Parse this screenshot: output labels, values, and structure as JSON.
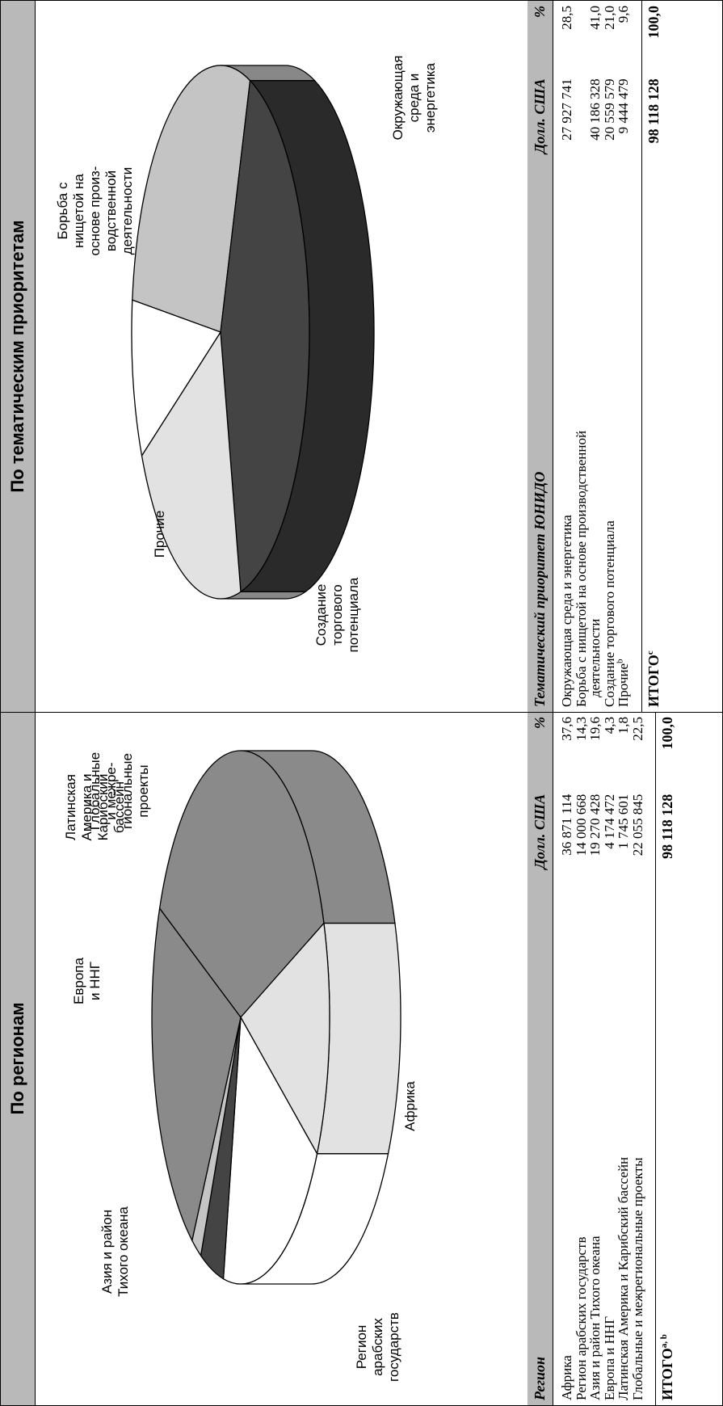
{
  "regions": {
    "header": "По регионам",
    "columns": {
      "name": "Регион",
      "usd": "Долл. США",
      "pct": "%"
    },
    "rows": [
      {
        "name": "Африка",
        "usd": "36 871 114",
        "pct": "37,6"
      },
      {
        "name": "Регион арабских государств",
        "usd": "14 000 668",
        "pct": "14,3"
      },
      {
        "name": "Азия и район Тихого океана",
        "usd": "19 270 428",
        "pct": "19,6"
      },
      {
        "name": "Европа и ННГ",
        "usd": "4 174 472",
        "pct": "4,3"
      },
      {
        "name": "Латинская Америка и Карибский бассейн",
        "usd": "1 745 601",
        "pct": "1,8"
      },
      {
        "name": "Глобальные и межрегиональные проекты",
        "usd": "22 055 845",
        "pct": "22,5"
      }
    ],
    "total": {
      "label": "ИТОГО",
      "sup": "a, b",
      "usd": "98 118 128",
      "pct": "100,0"
    }
  },
  "priorities": {
    "header": "По тематическим приоритетам",
    "columns": {
      "name": "Тематический приоритет ЮНИДО",
      "usd": "Долл. США",
      "pct": "%"
    },
    "rows": [
      {
        "name": "Окружающая среда и энергетика",
        "usd": "27 927 741",
        "pct": "28,5"
      },
      {
        "name": "Борьба с нищетой на основе производственной",
        "name_cont": "деятельности",
        "usd": "40 186 328",
        "pct": "41,0"
      },
      {
        "name": "Создание торгового потенциала",
        "usd": "20 559 579",
        "pct": "21,0"
      },
      {
        "name": "Прочие",
        "sup": "b",
        "usd": "9 444 479",
        "pct": "9,6"
      }
    ],
    "total": {
      "label": "ИТОГО",
      "sup": "c",
      "usd": "98 118 128",
      "pct": "100,0"
    }
  },
  "chart_data": [
    {
      "type": "pie",
      "categories": [
        "Африка",
        "Регион арабских государств",
        "Азия и район Тихого океана",
        "Европа и ННГ",
        "Латинская Америка и Карибский бассейн",
        "Глобальные и межрегиональные проекты"
      ],
      "values": [
        37.6,
        14.3,
        19.6,
        4.3,
        1.8,
        22.5
      ],
      "labels": [
        [
          "Африка"
        ],
        [
          "Регион",
          "арабских",
          "государств"
        ],
        [
          "Азия и район",
          "Тихого океана"
        ],
        [
          "Европа",
          "и ННГ"
        ],
        [
          "Латинская",
          "Америка и",
          "Карибский",
          "бассейн"
        ],
        [
          "Глобальные",
          "и межре-",
          "гиональные",
          "проекты"
        ]
      ],
      "colors": [
        "#8a8a8a",
        "#e2e2e2",
        "#ffffff",
        "#444444",
        "#c4c4c4",
        "#8a8a8a"
      ]
    },
    {
      "type": "pie",
      "categories": [
        "Окружающая среда и энергетика",
        "Борьба с нищетой на основе производственной деятельности",
        "Создание торгового потенциала",
        "Прочие"
      ],
      "values": [
        28.5,
        41.0,
        21.0,
        9.6
      ],
      "labels": [
        [
          "Окружающая",
          "среда и",
          "энергетика"
        ],
        [
          "Борьба с",
          "нищетой на",
          "основе произ-",
          "водственной",
          "деятельности"
        ],
        [
          "Создание",
          "торгового",
          "потенциала"
        ],
        [
          "Прочие"
        ]
      ],
      "colors": [
        "#c4c4c4",
        "#444444",
        "#e2e2e2",
        "#ffffff"
      ]
    }
  ]
}
